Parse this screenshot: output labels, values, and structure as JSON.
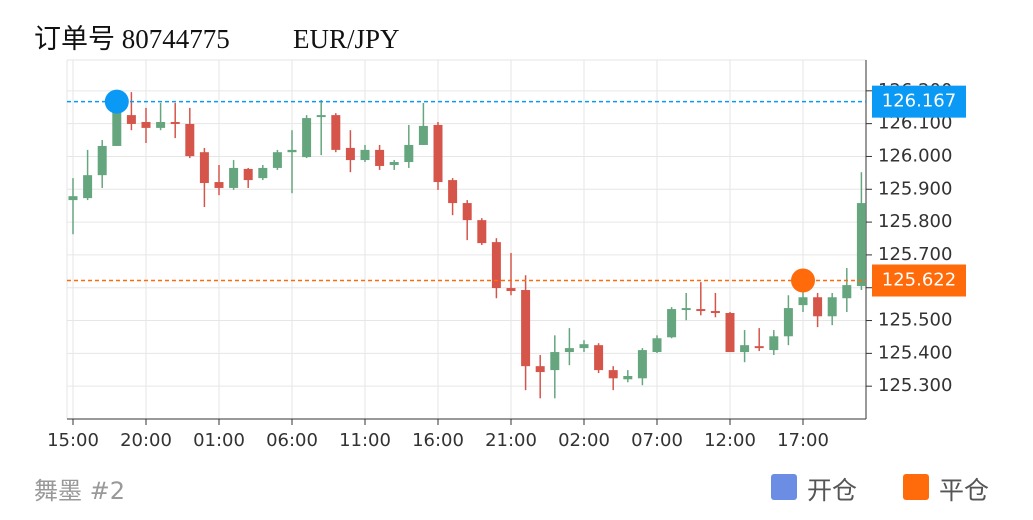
{
  "chart_data": {
    "type": "candlestick",
    "title": "订单号 80744775",
    "subtitle": "EUR/JPY",
    "footer": "舞墨 #2",
    "categories": [
      "15:00",
      null,
      null,
      null,
      null,
      "20:00",
      null,
      null,
      null,
      null,
      "01:00",
      null,
      null,
      null,
      null,
      "06:00",
      null,
      null,
      null,
      null,
      "11:00",
      null,
      null,
      null,
      null,
      "16:00",
      null,
      null,
      null,
      null,
      "21:00",
      null,
      null,
      null,
      null,
      "02:00",
      null,
      null,
      null,
      null,
      "07:00",
      null,
      null,
      null,
      null,
      "12:00",
      null,
      null,
      null,
      null,
      "17:00",
      null,
      null,
      null,
      null
    ],
    "open": [
      125.867,
      125.873,
      125.943,
      126.032,
      126.126,
      126.105,
      126.087,
      126.105,
      126.099,
      126.013,
      125.922,
      125.904,
      125.962,
      125.934,
      125.965,
      126.013,
      125.998,
      126.12,
      126.126,
      126.026,
      125.989,
      126.02,
      125.974,
      125.983,
      126.035,
      126.096,
      125.928,
      125.858,
      125.806,
      125.739,
      125.599,
      125.593,
      125.361,
      125.349,
      125.404,
      125.416,
      125.425,
      125.349,
      125.321,
      125.324,
      125.404,
      125.449,
      125.532,
      125.535,
      125.529,
      125.523,
      125.404,
      125.422,
      125.41,
      125.452,
      125.547,
      125.571,
      125.513,
      125.568,
      125.605
    ],
    "close": [
      125.879,
      125.943,
      126.032,
      126.148,
      126.099,
      126.087,
      126.105,
      126.099,
      126.001,
      125.919,
      125.904,
      125.965,
      125.928,
      125.965,
      126.013,
      126.02,
      126.117,
      126.126,
      126.02,
      125.989,
      126.02,
      125.971,
      125.983,
      126.035,
      126.093,
      125.922,
      125.858,
      125.806,
      125.736,
      125.599,
      125.59,
      125.361,
      125.343,
      125.404,
      125.416,
      125.428,
      125.349,
      125.324,
      125.331,
      125.41,
      125.446,
      125.535,
      125.538,
      125.529,
      125.523,
      125.404,
      125.425,
      125.416,
      125.452,
      125.538,
      125.571,
      125.513,
      125.571,
      125.608,
      125.858
    ],
    "high": [
      125.934,
      126.02,
      126.05,
      126.193,
      126.196,
      126.148,
      126.163,
      126.163,
      126.148,
      126.026,
      125.974,
      125.989,
      125.965,
      125.974,
      126.02,
      126.08,
      126.126,
      126.172,
      126.132,
      126.08,
      126.035,
      126.035,
      125.989,
      126.096,
      126.163,
      126.105,
      125.934,
      125.867,
      125.812,
      125.751,
      125.706,
      125.638,
      125.395,
      125.455,
      125.477,
      125.44,
      125.431,
      125.361,
      125.349,
      125.416,
      125.455,
      125.541,
      125.584,
      125.617,
      125.584,
      125.526,
      125.471,
      125.477,
      125.471,
      125.577,
      125.623,
      125.584,
      125.584,
      125.66,
      125.952
    ],
    "low": [
      125.763,
      125.867,
      125.904,
      126.032,
      126.08,
      126.041,
      126.08,
      126.056,
      125.995,
      125.846,
      125.882,
      125.898,
      125.904,
      125.928,
      125.959,
      125.888,
      125.995,
      126.004,
      126.013,
      125.952,
      125.983,
      125.959,
      125.959,
      125.965,
      126.035,
      125.898,
      125.821,
      125.745,
      125.73,
      125.568,
      125.577,
      125.288,
      125.263,
      125.263,
      125.364,
      125.404,
      125.34,
      125.288,
      125.312,
      125.303,
      125.401,
      125.446,
      125.501,
      125.516,
      125.51,
      125.404,
      125.373,
      125.407,
      125.395,
      125.425,
      125.526,
      125.48,
      125.486,
      125.526,
      125.593
    ],
    "up_color": "#66a67f",
    "down_color": "#d6554b",
    "ylim": [
      125.2,
      126.3
    ],
    "yticks": [
      {
        "value": 125.3,
        "label": "125.300"
      },
      {
        "value": 125.4,
        "label": "125.400"
      },
      {
        "value": 125.5,
        "label": "125.500"
      },
      {
        "value": 125.6,
        "label": "125.600"
      },
      {
        "value": 125.7,
        "label": "125.700"
      },
      {
        "value": 125.8,
        "label": "125.800"
      },
      {
        "value": 125.9,
        "label": "125.900"
      },
      {
        "value": 126.0,
        "label": "126.000"
      },
      {
        "value": 126.1,
        "label": "126.100"
      },
      {
        "value": 126.2,
        "label": "126.200"
      }
    ],
    "grid": true,
    "markers": [
      {
        "name": "开仓",
        "value": 126.167,
        "x": 3,
        "color": "#0a9af5",
        "legend_color": "#6b8de3"
      },
      {
        "name": "平仓",
        "value": 125.622,
        "x": 50,
        "color": "#ff6a0a",
        "legend_color": "#ff6a0a"
      }
    ]
  }
}
